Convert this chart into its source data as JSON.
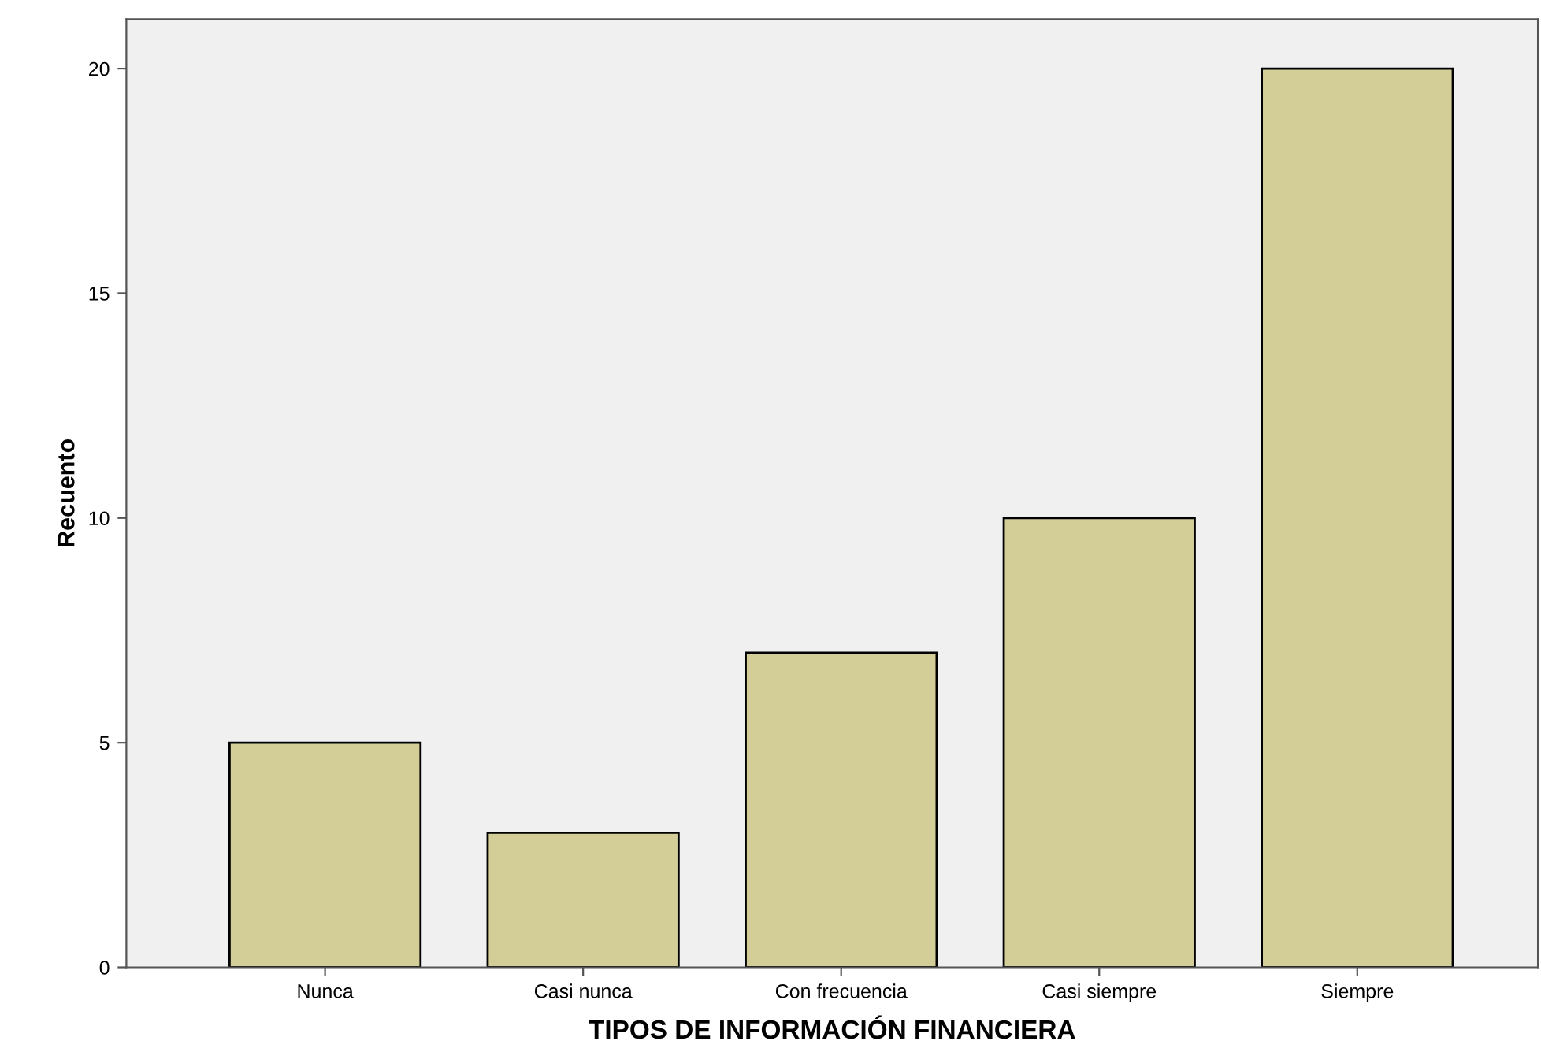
{
  "chart_data": {
    "type": "bar",
    "xlabel": "TIPOS DE INFORMACIÓN FINANCIERA",
    "ylabel": "Recuento",
    "categories": [
      "Nunca",
      "Casi nunca",
      "Con frecuencia",
      "Casi siempre",
      "Siempre"
    ],
    "values": [
      5,
      3,
      7,
      10,
      20
    ],
    "color": "#d3ce97",
    "ylim": [
      0,
      21.1
    ],
    "yticks": [
      0,
      5,
      10,
      15,
      20
    ],
    "grid": false,
    "legend": false
  }
}
